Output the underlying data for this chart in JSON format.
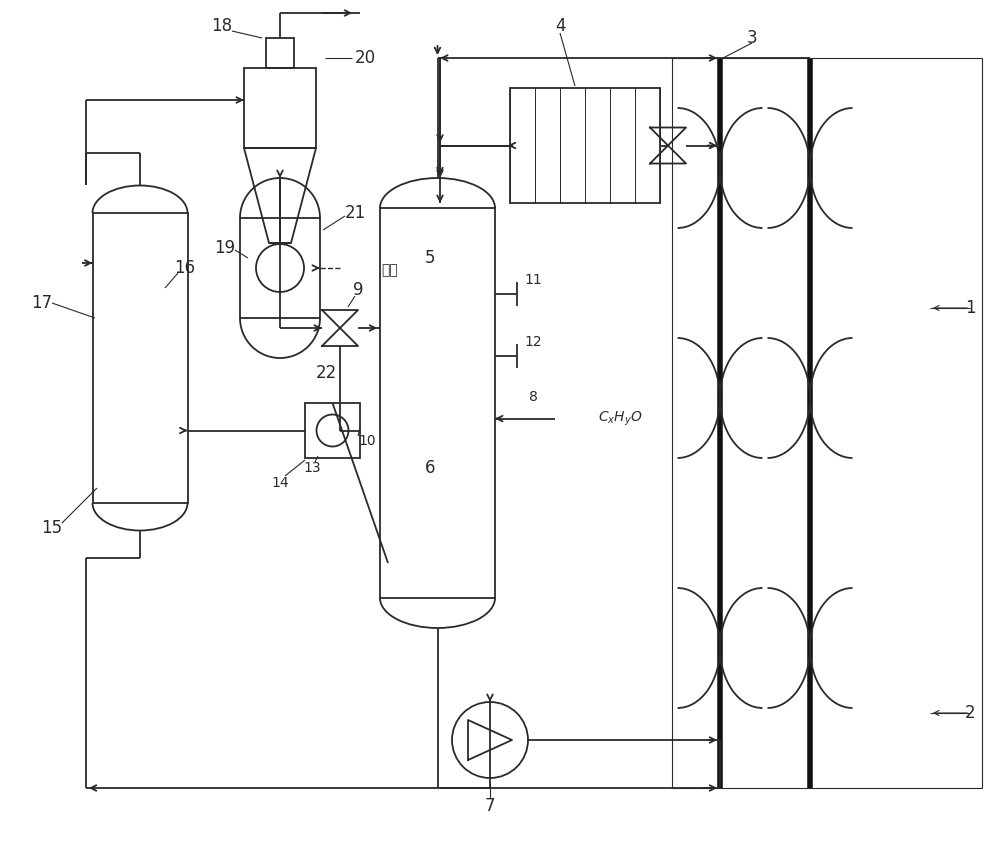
{
  "bg_color": "#ffffff",
  "lc": "#2a2a2a",
  "lw": 1.3,
  "fig_w": 10.0,
  "fig_h": 8.48
}
